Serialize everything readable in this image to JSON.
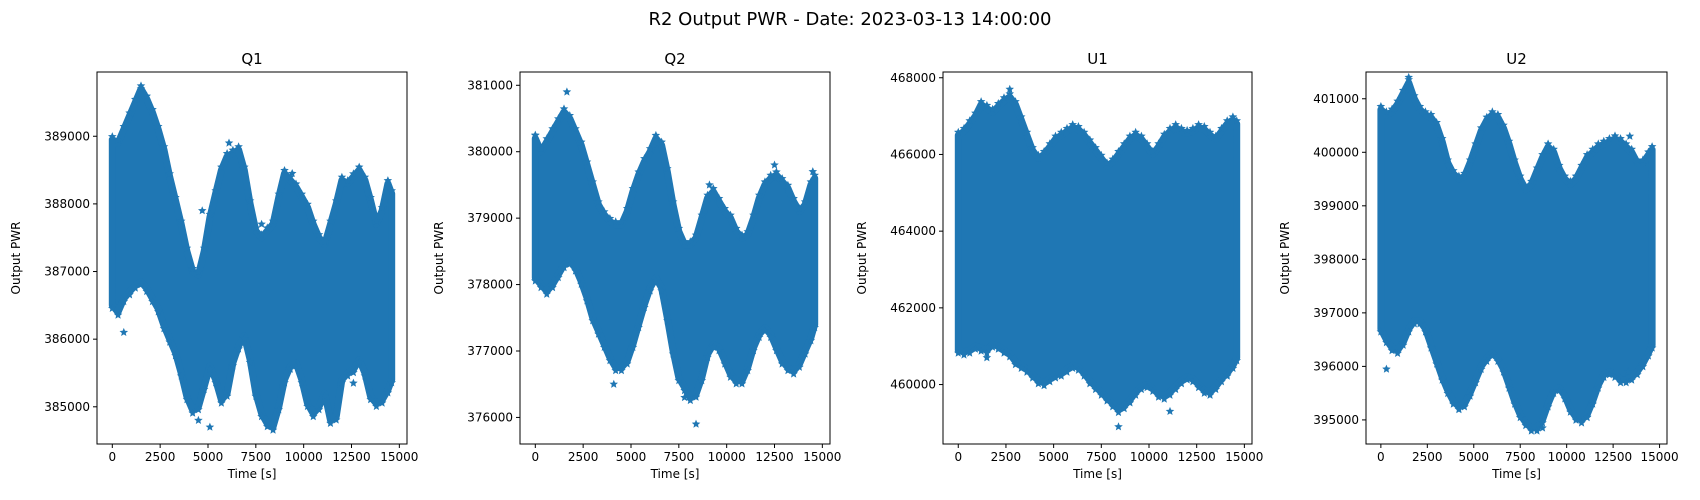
{
  "figure_title": "R2 Output PWR - Date: 2023-03-13 14:00:00",
  "colors": {
    "series": "#1f77b4",
    "axes": "#000000",
    "background": "#ffffff"
  },
  "chart_data": [
    {
      "type": "scatter",
      "marker": "star",
      "title": "Q1",
      "xlabel": "Time [s]",
      "ylabel": "Output PWR",
      "xlim": [
        -800,
        15400
      ],
      "ylim": [
        384450,
        389950
      ],
      "xticks": [
        0,
        2500,
        5000,
        7500,
        10000,
        12500,
        15000
      ],
      "yticks": [
        385000,
        386000,
        387000,
        388000,
        389000
      ],
      "envelope": {
        "x": [
          0,
          300,
          600,
          900,
          1200,
          1500,
          1800,
          2100,
          2400,
          2700,
          3000,
          3300,
          3600,
          3900,
          4200,
          4500,
          4800,
          5100,
          5400,
          5700,
          6000,
          6300,
          6600,
          6900,
          7200,
          7500,
          7800,
          8100,
          8400,
          8700,
          9000,
          9300,
          9600,
          9900,
          10200,
          10500,
          10800,
          11100,
          11400,
          11700,
          12000,
          12300,
          12600,
          12900,
          13200,
          13500,
          13800,
          14100,
          14400,
          14600
        ],
        "upper": [
          388950,
          388900,
          389100,
          389300,
          389500,
          389700,
          389550,
          389350,
          389100,
          388800,
          388400,
          388050,
          387700,
          387300,
          387000,
          386950,
          387300,
          387800,
          388150,
          388500,
          388700,
          388750,
          388800,
          388500,
          388000,
          387600,
          387500,
          387600,
          387700,
          388100,
          388450,
          388350,
          388250,
          388100,
          387950,
          387700,
          387500,
          387400,
          387700,
          388000,
          388350,
          388300,
          388400,
          388500,
          388350,
          388050,
          387700,
          387900,
          388300,
          388150
        ],
        "lower": [
          386500,
          386400,
          386600,
          386700,
          386800,
          386850,
          386750,
          386600,
          386450,
          386200,
          386000,
          385800,
          385500,
          385150,
          384950,
          385000,
          385300,
          385600,
          385400,
          385100,
          385200,
          385650,
          385900,
          386050,
          385700,
          385200,
          384900,
          384750,
          384700,
          385000,
          385400,
          385600,
          385650,
          385400,
          385050,
          384900,
          385000,
          385200,
          384800,
          384850,
          385400,
          385500,
          385550,
          385700,
          385500,
          385150,
          385050,
          385100,
          385250,
          385400
        ]
      },
      "outliers": [
        [
          1500,
          389700
        ],
        [
          6100,
          388900
        ],
        [
          7800,
          387700
        ],
        [
          4500,
          384800
        ],
        [
          5100,
          384700
        ],
        [
          600,
          386100
        ],
        [
          12600,
          385350
        ],
        [
          9400,
          388450
        ],
        [
          4700,
          387900
        ]
      ]
    },
    {
      "type": "scatter",
      "marker": "star",
      "title": "Q2",
      "xlabel": "Time [s]",
      "ylabel": "Output PWR",
      "xlim": [
        -800,
        15400
      ],
      "ylim": [
        375600,
        381200
      ],
      "xticks": [
        0,
        2500,
        5000,
        7500,
        10000,
        12500,
        15000
      ],
      "yticks": [
        376000,
        377000,
        378000,
        379000,
        380000,
        381000
      ],
      "envelope": {
        "x": [
          0,
          300,
          600,
          900,
          1200,
          1500,
          1800,
          2100,
          2400,
          2700,
          3000,
          3300,
          3600,
          3900,
          4200,
          4500,
          4800,
          5100,
          5400,
          5700,
          6000,
          6300,
          6600,
          6900,
          7200,
          7500,
          7800,
          8100,
          8400,
          8700,
          9000,
          9300,
          9600,
          9900,
          10200,
          10500,
          10800,
          11100,
          11400,
          11700,
          12000,
          12300,
          12600,
          12900,
          13200,
          13500,
          13800,
          14100,
          14400,
          14600
        ],
        "upper": [
          380200,
          380000,
          380150,
          380300,
          380450,
          380600,
          380500,
          380300,
          380100,
          379800,
          379500,
          379200,
          379050,
          378950,
          378900,
          378900,
          379100,
          379400,
          379650,
          379850,
          380000,
          380200,
          380100,
          379700,
          379200,
          378800,
          378600,
          378600,
          378700,
          379000,
          379300,
          379400,
          379250,
          379100,
          379000,
          378800,
          378700,
          378750,
          379000,
          379300,
          379500,
          379600,
          379650,
          379550,
          379450,
          379250,
          379100,
          379200,
          379500,
          379600
        ],
        "lower": [
          378100,
          378000,
          377900,
          378000,
          378150,
          378300,
          378350,
          378250,
          378050,
          377800,
          377500,
          377300,
          377100,
          376900,
          376750,
          376750,
          376850,
          377100,
          377400,
          377700,
          377950,
          378100,
          377950,
          377500,
          377000,
          376600,
          376450,
          376300,
          376350,
          376600,
          376950,
          377100,
          377050,
          376850,
          376650,
          376550,
          376550,
          376750,
          377050,
          377250,
          377350,
          377250,
          377050,
          376850,
          376750,
          376700,
          376800,
          377000,
          377200,
          377400
        ]
      },
      "outliers": [
        [
          1650,
          380900
        ],
        [
          0,
          380250
        ],
        [
          8400,
          375900
        ],
        [
          7800,
          376300
        ],
        [
          4100,
          376500
        ],
        [
          12500,
          379800
        ],
        [
          14500,
          379700
        ],
        [
          9100,
          379500
        ]
      ]
    },
    {
      "type": "scatter",
      "marker": "star",
      "title": "U1",
      "xlabel": "Time [s]",
      "ylabel": "Output PWR",
      "xlim": [
        -800,
        15400
      ],
      "ylim": [
        458450,
        468150
      ],
      "xticks": [
        0,
        2500,
        5000,
        7500,
        10000,
        12500,
        15000
      ],
      "yticks": [
        460000,
        462000,
        464000,
        466000,
        468000
      ],
      "envelope": {
        "x": [
          0,
          300,
          600,
          900,
          1200,
          1500,
          1800,
          2100,
          2400,
          2700,
          3000,
          3300,
          3600,
          3900,
          4200,
          4500,
          4800,
          5100,
          5400,
          5700,
          6000,
          6300,
          6600,
          6900,
          7200,
          7500,
          7800,
          8100,
          8400,
          8700,
          9000,
          9300,
          9600,
          9900,
          10200,
          10500,
          10800,
          11100,
          11400,
          11700,
          12000,
          12300,
          12600,
          12900,
          13200,
          13500,
          13800,
          14100,
          14400,
          14600
        ],
        "upper": [
          466500,
          466600,
          466800,
          467000,
          467300,
          467200,
          467100,
          467250,
          467400,
          467500,
          467300,
          466900,
          466500,
          466100,
          465900,
          466000,
          466200,
          466400,
          466500,
          466600,
          466700,
          466650,
          466500,
          466300,
          466100,
          465900,
          465700,
          465800,
          466000,
          466200,
          466400,
          466500,
          466400,
          466200,
          466000,
          466200,
          466450,
          466600,
          466700,
          466600,
          466550,
          466600,
          466700,
          466650,
          466500,
          466400,
          466600,
          466800,
          466900,
          466800
        ],
        "lower": [
          460900,
          460850,
          460900,
          461000,
          460950,
          460900,
          461050,
          461000,
          460900,
          460800,
          460600,
          460500,
          460400,
          460250,
          460100,
          460050,
          460150,
          460250,
          460300,
          460400,
          460500,
          460450,
          460300,
          460100,
          459950,
          459800,
          459650,
          459500,
          459350,
          459450,
          459600,
          459800,
          459950,
          460000,
          459900,
          459750,
          459700,
          459800,
          459950,
          460100,
          460200,
          460150,
          460000,
          459850,
          459800,
          459950,
          460150,
          460300,
          460500,
          460700
        ]
      },
      "outliers": [
        [
          8400,
          458900
        ],
        [
          1500,
          460700
        ],
        [
          2700,
          467700
        ],
        [
          11100,
          459300
        ],
        [
          14100,
          460250
        ]
      ]
    },
    {
      "type": "scatter",
      "marker": "star",
      "title": "U2",
      "xlabel": "Time [s]",
      "ylabel": "Output PWR",
      "xlim": [
        -800,
        15400
      ],
      "ylim": [
        394550,
        401500
      ],
      "xticks": [
        0,
        2500,
        5000,
        7500,
        10000,
        12500,
        15000
      ],
      "yticks": [
        395000,
        396000,
        397000,
        398000,
        399000,
        400000,
        401000
      ],
      "envelope": {
        "x": [
          0,
          300,
          600,
          900,
          1200,
          1500,
          1800,
          2100,
          2400,
          2700,
          3000,
          3300,
          3600,
          3900,
          4200,
          4500,
          4800,
          5100,
          5400,
          5700,
          6000,
          6300,
          6600,
          6900,
          7200,
          7500,
          7800,
          8100,
          8400,
          8700,
          9000,
          9300,
          9600,
          9900,
          10200,
          10500,
          10800,
          11100,
          11400,
          11700,
          12000,
          12300,
          12600,
          12900,
          13200,
          13500,
          13800,
          14100,
          14400,
          14600
        ],
        "upper": [
          400800,
          400700,
          400750,
          400900,
          401100,
          401300,
          401000,
          400800,
          400700,
          400650,
          400500,
          400200,
          399800,
          399600,
          399500,
          399550,
          399800,
          400100,
          400400,
          400600,
          400700,
          400650,
          400450,
          400150,
          399800,
          399500,
          399300,
          399400,
          399650,
          399900,
          400100,
          400000,
          399700,
          399500,
          399400,
          399500,
          399700,
          399900,
          400000,
          400100,
          400150,
          400200,
          400250,
          400200,
          400100,
          400000,
          399800,
          399800,
          399950,
          400050
        ],
        "lower": [
          396700,
          396500,
          396350,
          396300,
          396450,
          396700,
          396850,
          396850,
          396700,
          396400,
          396100,
          395800,
          395550,
          395350,
          395250,
          395300,
          395500,
          395750,
          396000,
          396150,
          396250,
          396150,
          395950,
          395650,
          395350,
          395100,
          394950,
          394850,
          394850,
          395000,
          395300,
          395550,
          395600,
          395450,
          395200,
          395050,
          395000,
          395100,
          395350,
          395650,
          395850,
          395900,
          395850,
          395750,
          395750,
          395800,
          395900,
          396050,
          396250,
          396400
        ]
      },
      "outliers": [
        [
          1500,
          401400
        ],
        [
          8700,
          394850
        ],
        [
          300,
          395950
        ],
        [
          13400,
          400300
        ],
        [
          4200,
          395200
        ],
        [
          11100,
          395050
        ],
        [
          13300,
          395900
        ]
      ]
    }
  ]
}
